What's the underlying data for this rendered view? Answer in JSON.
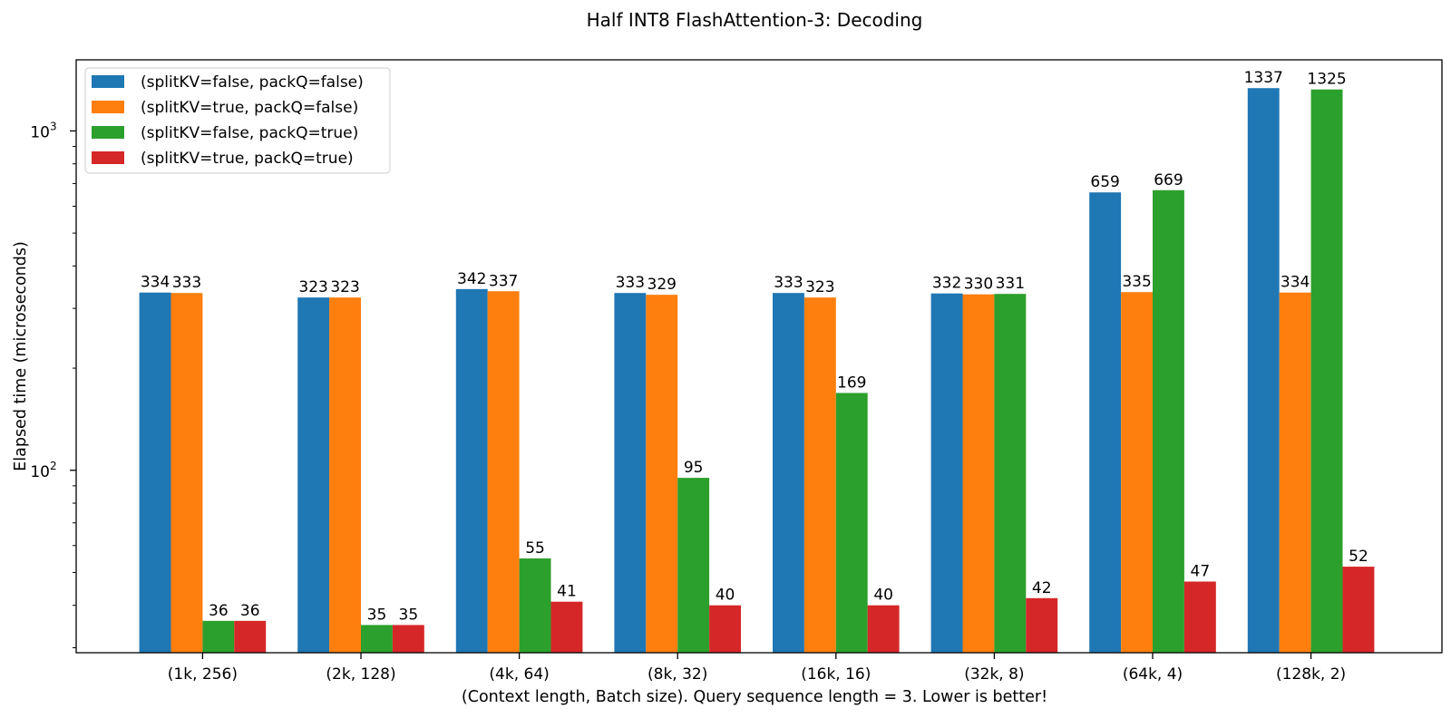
{
  "chart_data": {
    "type": "bar",
    "title": "Half INT8 FlashAttention-3: Decoding",
    "xlabel": "(Context length, Batch size). Query sequence length = 3. Lower is better!",
    "ylabel": "Elapsed time (microseconds)",
    "yscale": "log",
    "ylim": [
      29,
      1620
    ],
    "yticks": [
      {
        "value": 100,
        "base": "10",
        "exp": "2"
      },
      {
        "value": 1000,
        "base": "10",
        "exp": "3"
      }
    ],
    "legend_position": "top-left",
    "grid": false,
    "categories": [
      "(1k, 256)",
      "(2k, 128)",
      "(4k, 64)",
      "(8k, 32)",
      "(16k, 16)",
      "(32k, 8)",
      "(64k, 4)",
      "(128k, 2)"
    ],
    "series": [
      {
        "name": "(splitKV=false, packQ=false)",
        "color": "#1f77b4",
        "values": [
          334,
          323,
          342,
          333,
          333,
          332,
          659,
          1337
        ]
      },
      {
        "name": "(splitKV=true, packQ=false)",
        "color": "#ff7f0e",
        "values": [
          333,
          323,
          337,
          329,
          323,
          330,
          335,
          334
        ]
      },
      {
        "name": "(splitKV=false, packQ=true)",
        "color": "#2ca02c",
        "values": [
          36,
          35,
          55,
          95,
          169,
          331,
          669,
          1325
        ]
      },
      {
        "name": "(splitKV=true, packQ=true)",
        "color": "#d62728",
        "values": [
          36,
          35,
          41,
          40,
          40,
          42,
          47,
          52
        ]
      }
    ],
    "data_labels": [
      [
        "334",
        "323",
        "342",
        "333",
        "333",
        "332",
        "659",
        "1337"
      ],
      [
        "333",
        "323",
        "337",
        "329",
        "323",
        "330",
        "335",
        "334"
      ],
      [
        "36",
        "35",
        "55",
        "95",
        "169",
        "331",
        "669",
        "1325"
      ],
      [
        "36",
        "35",
        "41",
        "40",
        "40",
        "42",
        "47",
        "52"
      ]
    ]
  }
}
